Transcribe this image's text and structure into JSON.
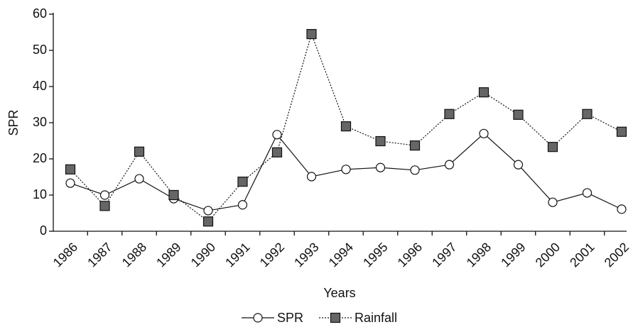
{
  "chart_data": {
    "type": "line",
    "x_label": "Years",
    "y_label": "SPR",
    "categories": [
      "1986",
      "1987",
      "1988",
      "1989",
      "1990",
      "1991",
      "1992",
      "1993",
      "1994",
      "1995",
      "1996",
      "1997",
      "1998",
      "1999",
      "2000",
      "2001",
      "2002"
    ],
    "series": [
      {
        "name": "SPR",
        "color": "#111111",
        "marker": "circle",
        "marker_fill": "#ffffff",
        "dashed": false,
        "values": [
          13.3,
          10,
          14.5,
          9,
          5.7,
          7.3,
          26.7,
          15.1,
          17.1,
          17.6,
          16.9,
          18.4,
          27,
          18.4,
          8,
          10.6,
          6.1
        ]
      },
      {
        "name": "Rainfall",
        "color": "#111111",
        "marker": "square",
        "marker_fill": "#666666",
        "dashed": true,
        "values": [
          17.1,
          7,
          22,
          10,
          2.7,
          13.7,
          21.8,
          54.5,
          29,
          24.9,
          23.7,
          32.4,
          38.4,
          32.2,
          23.3,
          32.4,
          27.5
        ]
      }
    ],
    "ylim": [
      0,
      60
    ],
    "yticks": [
      0,
      10,
      20,
      30,
      40,
      50,
      60
    ],
    "grid": false,
    "legend": "bottom"
  }
}
